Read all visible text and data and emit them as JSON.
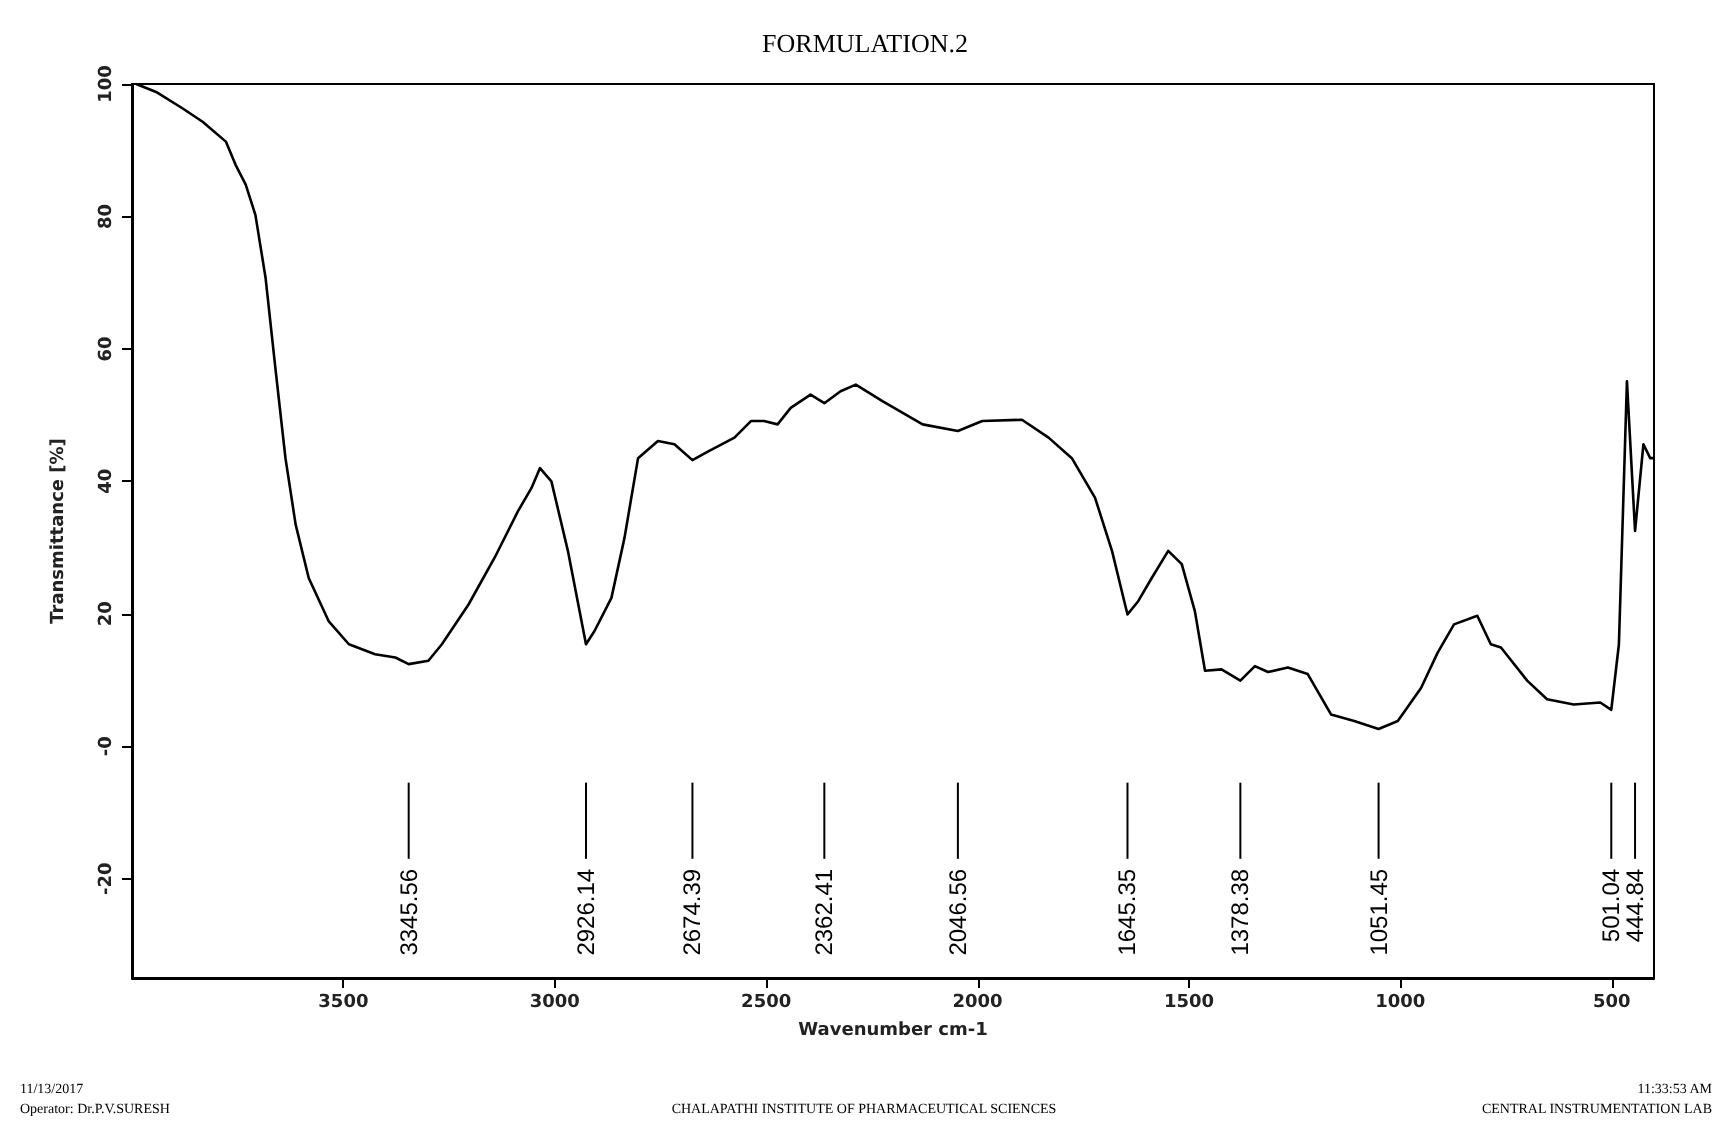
{
  "chart_data": {
    "type": "line",
    "title": "FORMULATION.2",
    "xlabel": "Wavenumber cm-1",
    "ylabel": "Transmittance [%]",
    "xlim": [
      4000,
      400
    ],
    "xticks": [
      3500,
      3000,
      2500,
      2000,
      1500,
      1000,
      500
    ],
    "ylim": [
      -35,
      100
    ],
    "yticks": [
      -20,
      {
        "value": 0,
        "label": "-0"
      },
      20,
      40,
      60,
      80,
      100
    ],
    "grid": false,
    "marker": "none",
    "line_style": "solid",
    "series": [
      {
        "color": "#000000",
        "x": [
          3990,
          3943,
          3880,
          3833,
          3778,
          3755,
          3731,
          3708,
          3684,
          3660,
          3637,
          3613,
          3582,
          3535,
          3487,
          3425,
          3377,
          3345.56,
          3299,
          3267,
          3204,
          3142,
          3087,
          3055,
          3035,
          3008,
          2969,
          2926.14,
          2906,
          2866,
          2835,
          2803,
          2756,
          2717,
          2674.39,
          2638,
          2575,
          2536,
          2505,
          2473,
          2442,
          2395,
          2362.41,
          2324,
          2288,
          2225,
          2130,
          2046.56,
          1989,
          1895,
          1832,
          1777,
          1722,
          1682,
          1645.35,
          1620,
          1588,
          1549,
          1517,
          1486,
          1462,
          1423,
          1378.38,
          1344,
          1313,
          1266,
          1219,
          1164,
          1109,
          1051.45,
          1006,
          951,
          912,
          873,
          818,
          786,
          762,
          700,
          653,
          590,
          527,
          501.04,
          483,
          464,
          444.84,
          425,
          409,
          400
        ],
        "values": [
          100.0,
          98.8,
          96.3,
          94.3,
          91.3,
          87.8,
          84.8,
          80.2,
          70.7,
          56.6,
          43.5,
          33.5,
          25.4,
          18.9,
          15.4,
          13.9,
          13.4,
          12.4,
          12.9,
          15.4,
          21.4,
          28.5,
          35.5,
          39.0,
          42.0,
          40.0,
          29.5,
          15.4,
          17.4,
          22.4,
          31.5,
          43.5,
          46.1,
          45.6,
          43.2,
          44.5,
          46.6,
          49.1,
          49.1,
          48.6,
          51.1,
          53.1,
          51.8,
          53.6,
          54.6,
          52.1,
          48.6,
          47.6,
          49.1,
          49.3,
          46.6,
          43.5,
          37.5,
          29.5,
          19.9,
          21.9,
          25.4,
          29.5,
          27.5,
          20.4,
          11.4,
          11.6,
          9.9,
          12.1,
          11.2,
          11.9,
          10.9,
          4.8,
          3.8,
          2.6,
          3.8,
          8.8,
          14.1,
          18.4,
          19.7,
          15.4,
          14.9,
          9.9,
          7.1,
          6.3,
          6.6,
          5.5,
          15.4,
          55.1,
          32.5,
          45.6,
          43.5,
          43.5
        ]
      }
    ],
    "annotations": [
      {
        "text": "3345.56",
        "x": 3345.56
      },
      {
        "text": "2926.14",
        "x": 2926.14
      },
      {
        "text": "2674.39",
        "x": 2674.39
      },
      {
        "text": "2362.41",
        "x": 2362.41
      },
      {
        "text": "2046.56",
        "x": 2046.56
      },
      {
        "text": "1645.35",
        "x": 1645.35
      },
      {
        "text": "1378.38",
        "x": 1378.38
      },
      {
        "text": "1051.45",
        "x": 1051.45
      },
      {
        "text": "501.04",
        "x": 501.04
      },
      {
        "text": "444.84",
        "x": 444.84
      },
      "11/13/2017",
      "Operator: Dr.P.V.SURESH",
      "CHALAPATHI INSTITUTE OF PHARMACEUTICAL SCIENCES",
      "11:33:53 AM",
      "CENTRAL INSTRUMENTATION LAB"
    ]
  }
}
